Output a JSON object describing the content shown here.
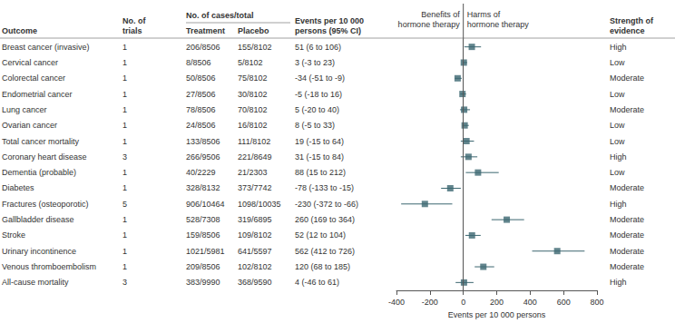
{
  "chart_data": {
    "type": "forest",
    "headers": {
      "outcome": "Outcome",
      "trials": "No. of\ntrials",
      "cases": "No. of cases/total",
      "treatment": "Treatment",
      "placebo": "Placebo",
      "events": "Events per 10 000\npersons (95% CI)",
      "strength": "Strength of\nevidence"
    },
    "benefit_label": "Benefits of\nhormone therapy",
    "harm_label": "Harms of\nhormone therapy",
    "xlabel": "Events per 10 000 persons",
    "categories": [
      "Breast cancer (invasive)",
      "Cervical cancer",
      "Colorectal cancer",
      "Endometrial cancer",
      "Lung cancer",
      "Ovarian cancer",
      "Total cancer mortality",
      "Coronary heart disease",
      "Dementia (probable)",
      "Diabetes",
      "Fractures (osteoporotic)",
      "Gallbladder disease",
      "Stroke",
      "Urinary incontinence",
      "Venous thromboembolism",
      "All-cause mortality"
    ],
    "trials": [
      1,
      1,
      1,
      1,
      1,
      1,
      1,
      3,
      1,
      1,
      5,
      1,
      1,
      1,
      1,
      3
    ],
    "treatment": [
      "206/8506",
      "8/8506",
      "50/8506",
      "27/8506",
      "78/8506",
      "24/8506",
      "133/8506",
      "266/9506",
      "40/2229",
      "328/8132",
      "906/10464",
      "528/7308",
      "159/8506",
      "1021/5981",
      "209/8506",
      "383/9990"
    ],
    "placebo": [
      "155/8102",
      "5/8102",
      "75/8102",
      "30/8102",
      "70/8102",
      "16/8102",
      "111/8102",
      "221/8649",
      "21/2303",
      "373/7742",
      "1098/10035",
      "319/6895",
      "109/8102",
      "641/5597",
      "102/8102",
      "368/9590"
    ],
    "values": [
      51,
      3,
      -34,
      -5,
      5,
      8,
      19,
      31,
      88,
      -78,
      -230,
      260,
      52,
      562,
      120,
      4
    ],
    "lower": [
      6,
      -3,
      -51,
      -18,
      -20,
      -5,
      -15,
      -15,
      15,
      -133,
      -372,
      169,
      12,
      412,
      68,
      -46
    ],
    "upper": [
      106,
      23,
      -9,
      16,
      40,
      33,
      64,
      84,
      212,
      -15,
      -66,
      364,
      104,
      726,
      185,
      61
    ],
    "value_labels": [
      "51 (6 to 106)",
      "3 (-3 to 23)",
      "-34 (-51 to -9)",
      "-5 (-18 to 16)",
      "5 (-20 to 40)",
      "8 (-5 to 33)",
      "19 (-15 to 64)",
      "31 (-15 to 84)",
      "88 (15 to 212)",
      "-78 (-133 to -15)",
      "-230 (-372 to -66)",
      "260 (169 to 364)",
      "52 (12 to 104)",
      "562 (412 to 726)",
      "120 (68 to 185)",
      "4 (-46 to 61)"
    ],
    "strength": [
      "High",
      "Low",
      "Moderate",
      "Low",
      "Moderate",
      "Low",
      "Low",
      "High",
      "Low",
      "Moderate",
      "High",
      "Moderate",
      "Moderate",
      "Moderate",
      "Moderate",
      "High"
    ],
    "xlim": [
      -400,
      800
    ],
    "xticks": [
      -400,
      -200,
      0,
      200,
      400,
      600,
      800
    ],
    "grid": false,
    "color": "#3b6670",
    "marker": "square"
  }
}
